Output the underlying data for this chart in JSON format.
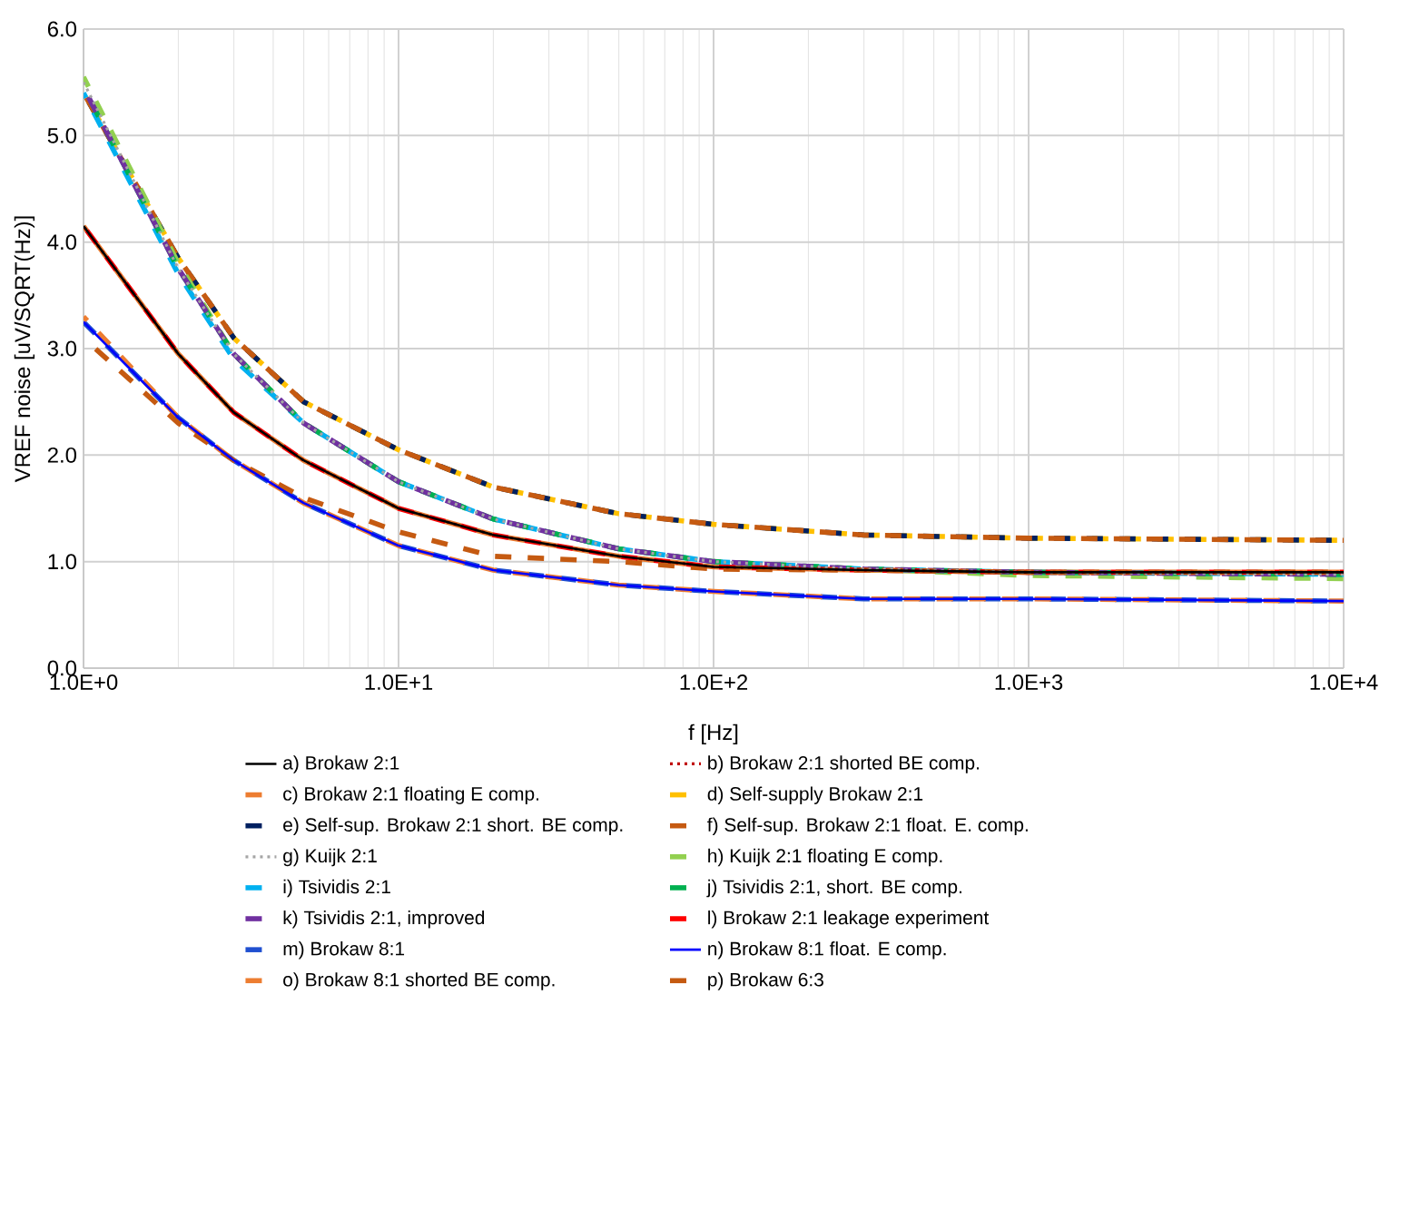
{
  "chart_data": {
    "type": "line",
    "xlabel": "f [Hz]",
    "ylabel": "VREF noise [uV/SQRT(Hz)]",
    "x": [
      1,
      2,
      3,
      5,
      10,
      20,
      50,
      100,
      300,
      1000,
      10000
    ],
    "log": "x",
    "grid": true,
    "legend": "bottom",
    "marker": "none",
    "xlim": [
      1,
      10000
    ],
    "xticks": [
      {
        "value": 1,
        "label": "1.0E+0"
      },
      {
        "value": 10,
        "label": "1.0E+1"
      },
      {
        "value": 100,
        "label": "1.0E+2"
      },
      {
        "value": 1000,
        "label": "1.0E+3"
      },
      {
        "value": 10000,
        "label": "1.0E+4"
      }
    ],
    "ylim": [
      0,
      6
    ],
    "yticks": [
      {
        "value": 0,
        "label": "0.0"
      },
      {
        "value": 1,
        "label": "1.0"
      },
      {
        "value": 2,
        "label": "2.0"
      },
      {
        "value": 3,
        "label": "3.0"
      },
      {
        "value": 4,
        "label": "4.0"
      },
      {
        "value": 5,
        "label": "5.0"
      },
      {
        "value": 6,
        "label": "6.0"
      }
    ],
    "series": [
      {
        "name": "a) Brokaw 2:1",
        "color": "#000000",
        "line_style": "solid",
        "values": [
          4.15,
          2.95,
          2.4,
          1.95,
          1.5,
          1.25,
          1.05,
          0.95,
          0.92,
          0.9,
          0.9
        ]
      },
      {
        "name": "b) Brokaw 2:1 shorted BE comp.",
        "color": "#c00000",
        "line_style": "dotted",
        "values": [
          4.15,
          2.95,
          2.4,
          1.95,
          1.5,
          1.25,
          1.05,
          0.95,
          0.92,
          0.9,
          0.9
        ]
      },
      {
        "name": "c) Brokaw 2:1 floating E comp.",
        "color": "#ed7d31",
        "line_style": "dashed",
        "values": [
          4.15,
          2.95,
          2.4,
          1.95,
          1.5,
          1.25,
          1.05,
          0.95,
          0.92,
          0.9,
          0.9
        ]
      },
      {
        "name": "d) Self-supply Brokaw 2:1",
        "color": "#ffc000",
        "line_style": "dashed",
        "values": [
          5.4,
          3.85,
          3.1,
          2.5,
          2.05,
          1.7,
          1.45,
          1.35,
          1.25,
          1.22,
          1.2
        ]
      },
      {
        "name": "e) Self-sup. Brokaw 2:1 short. BE comp.",
        "color": "#002060",
        "line_style": "dashed",
        "values": [
          5.4,
          3.85,
          3.1,
          2.5,
          2.05,
          1.7,
          1.45,
          1.35,
          1.25,
          1.22,
          1.2
        ]
      },
      {
        "name": "f) Self-sup. Brokaw 2:1 float. E. comp.",
        "color": "#c55a11",
        "line_style": "dashed",
        "values": [
          5.4,
          3.85,
          3.1,
          2.5,
          2.05,
          1.7,
          1.45,
          1.35,
          1.25,
          1.22,
          1.2
        ]
      },
      {
        "name": "g) Kuijk 2:1",
        "color": "#a5a5a5",
        "line_style": "dotted",
        "values": [
          5.5,
          3.75,
          2.95,
          2.3,
          1.75,
          1.4,
          1.12,
          1.0,
          0.93,
          0.9,
          0.88
        ]
      },
      {
        "name": "h) Kuijk 2:1 floating E comp.",
        "color": "#92d050",
        "line_style": "dashed",
        "values": [
          5.55,
          3.8,
          2.95,
          2.3,
          1.75,
          1.4,
          1.12,
          1.0,
          0.93,
          0.87,
          0.84
        ]
      },
      {
        "name": "i) Tsividis 2:1",
        "color": "#00b0f0",
        "line_style": "dashed",
        "values": [
          5.4,
          3.7,
          2.9,
          2.3,
          1.75,
          1.4,
          1.12,
          1.0,
          0.93,
          0.9,
          0.88
        ]
      },
      {
        "name": "j) Tsividis 2:1, short. BE comp.",
        "color": "#00b050",
        "line_style": "dashed",
        "values": [
          5.45,
          3.75,
          2.95,
          2.3,
          1.75,
          1.4,
          1.12,
          1.0,
          0.93,
          0.9,
          0.88
        ]
      },
      {
        "name": "k) Tsividis 2:1, improved",
        "color": "#7030a0",
        "line_style": "dashed",
        "values": [
          5.45,
          3.75,
          2.95,
          2.3,
          1.75,
          1.4,
          1.12,
          1.0,
          0.93,
          0.9,
          0.88
        ]
      },
      {
        "name": "l) Brokaw 2:1 leakage experiment",
        "color": "#ff0000",
        "line_style": "dashed",
        "values": [
          4.15,
          2.95,
          2.4,
          1.95,
          1.5,
          1.25,
          1.05,
          0.95,
          0.92,
          0.9,
          0.9
        ]
      },
      {
        "name": "m) Brokaw 8:1",
        "color": "#2050d0",
        "line_style": "dashed",
        "values": [
          3.25,
          2.35,
          1.95,
          1.55,
          1.15,
          0.92,
          0.78,
          0.72,
          0.65,
          0.65,
          0.63
        ]
      },
      {
        "name": "n) Brokaw 8:1 float. E comp.",
        "color": "#0000ff",
        "line_style": "solid",
        "values": [
          3.25,
          2.35,
          1.95,
          1.55,
          1.15,
          0.92,
          0.78,
          0.72,
          0.65,
          0.65,
          0.63
        ]
      },
      {
        "name": "o) Brokaw 8:1 shorted BE comp.",
        "color": "#ed7d31",
        "line_style": "dashed",
        "values": [
          3.3,
          2.35,
          1.95,
          1.55,
          1.15,
          0.92,
          0.78,
          0.72,
          0.65,
          0.65,
          0.63
        ]
      },
      {
        "name": "p) Brokaw 6:3",
        "color": "#c55a11",
        "line_style": "dashed",
        "values": [
          3.1,
          2.3,
          1.95,
          1.6,
          1.28,
          1.05,
          1.0,
          0.93,
          0.92,
          0.9,
          0.9
        ]
      }
    ]
  }
}
